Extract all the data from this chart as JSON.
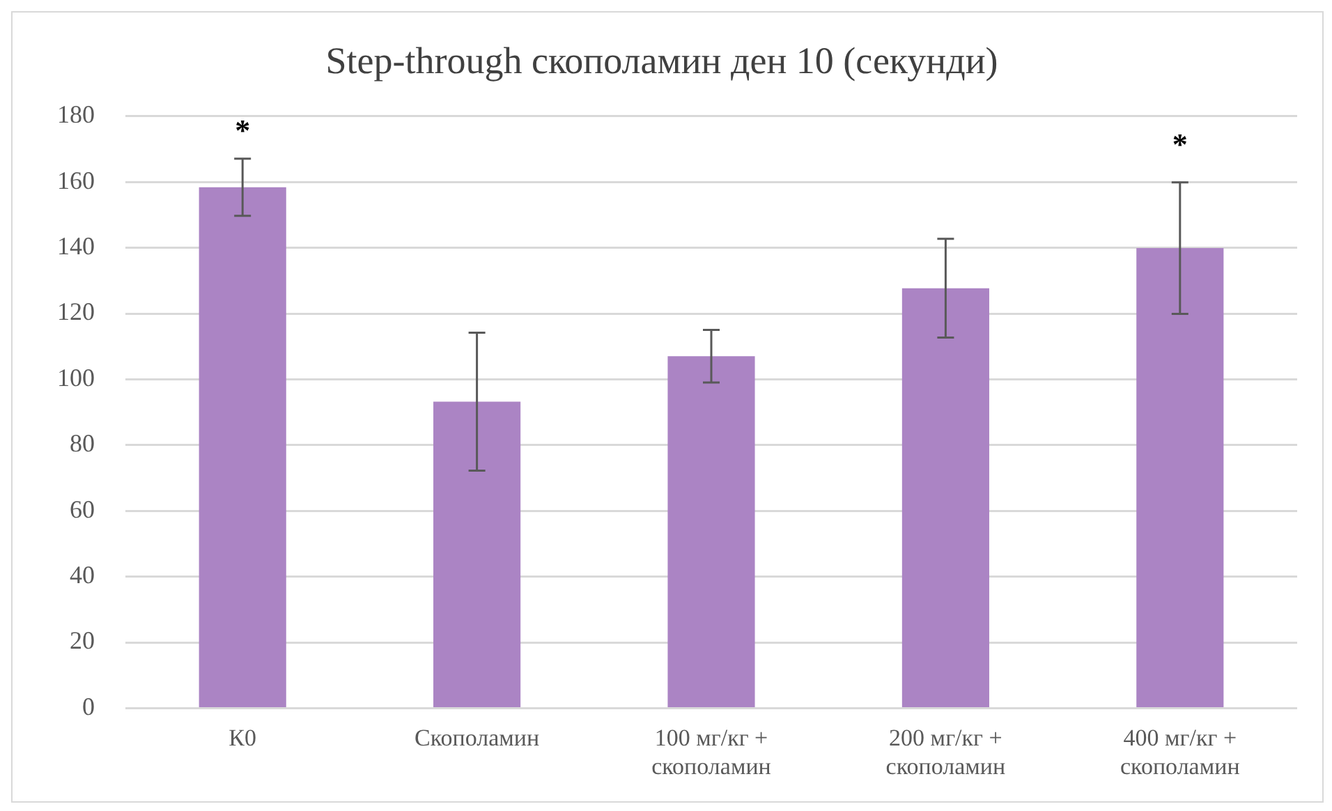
{
  "chart_data": {
    "type": "bar",
    "title": "Step-through скополамин ден 10 (секунди)",
    "categories": [
      "К0",
      "Скополамин",
      "100 мг/кг + скополамин",
      "200 мг/кг + скополамин",
      "400 мг/кг + скополамин"
    ],
    "values": [
      158.4,
      93.2,
      107.0,
      127.7,
      139.9
    ],
    "errors": [
      8.7,
      21,
      8,
      15,
      20
    ],
    "color": "#ab84c4",
    "ylim": [
      0,
      180
    ],
    "yticks": [
      0,
      20,
      40,
      60,
      80,
      100,
      120,
      140,
      160,
      180
    ],
    "grid": "y",
    "annotations": [
      "*",
      "*"
    ]
  }
}
